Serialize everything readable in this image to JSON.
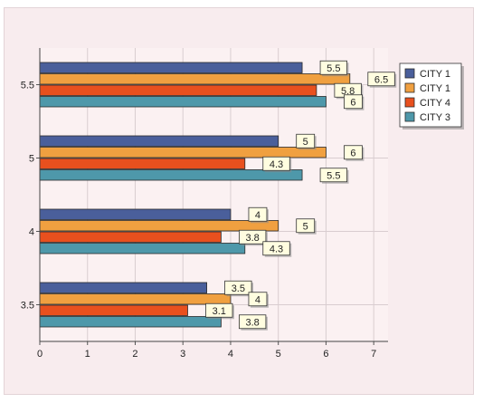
{
  "chart_data": {
    "type": "bar",
    "orientation": "horizontal",
    "categories": [
      "3.5",
      "4",
      "5",
      "5.5"
    ],
    "series": [
      {
        "name": "CITY 1",
        "color": "#4a5f9b",
        "values": [
          3.5,
          4,
          5,
          5.5
        ]
      },
      {
        "name": "CITY 1",
        "color": "#f0a040",
        "values": [
          4,
          5,
          6,
          6.5
        ]
      },
      {
        "name": "CITY 4",
        "color": "#e8501e",
        "values": [
          3.1,
          3.8,
          4.3,
          5.8
        ]
      },
      {
        "name": "CITY 3",
        "color": "#4e98aa",
        "values": [
          3.8,
          4.3,
          5.5,
          6
        ]
      }
    ],
    "xlim": [
      0,
      7.3
    ],
    "xticks": [
      0,
      1,
      2,
      3,
      4,
      5,
      6,
      7
    ],
    "title": "",
    "xlabel": "",
    "ylabel": "",
    "grid": true,
    "legend_position": "top-right",
    "data_labels": true
  }
}
